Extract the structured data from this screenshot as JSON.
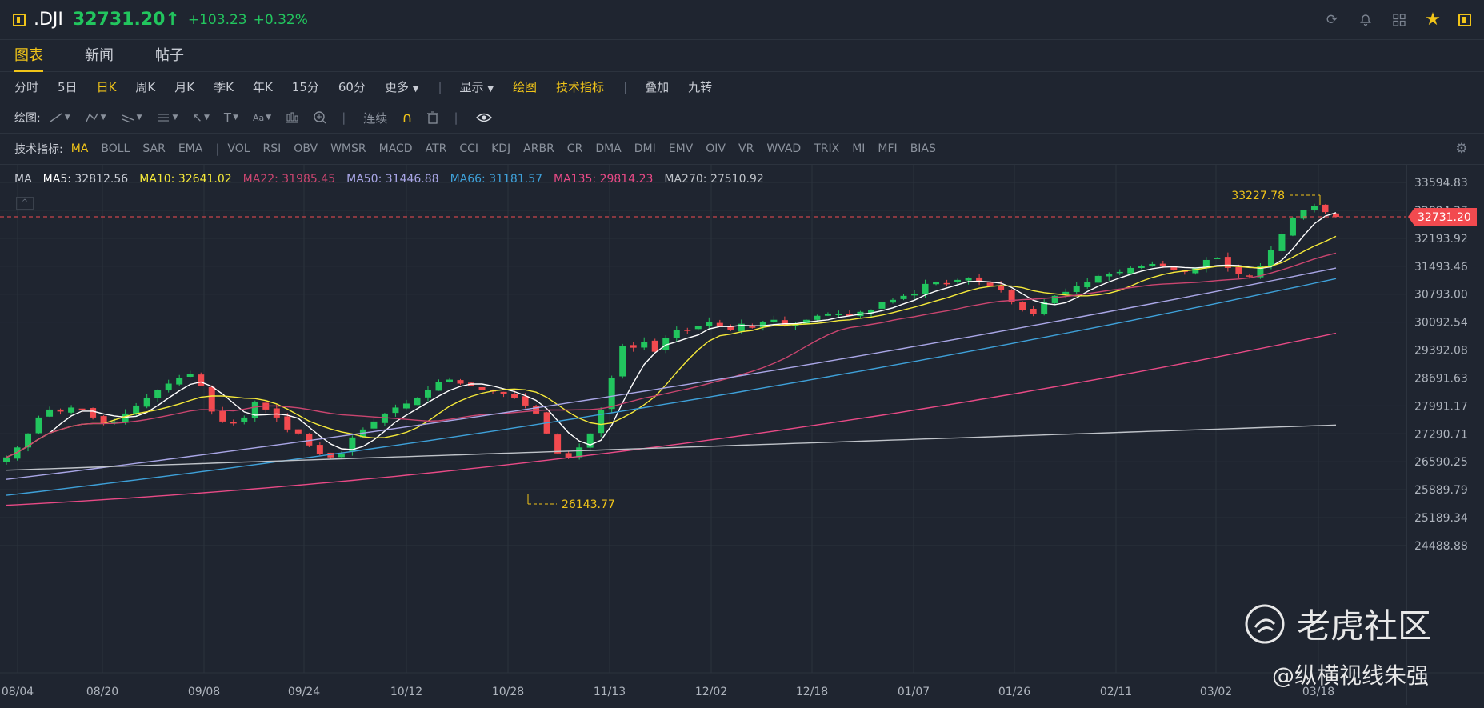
{
  "header": {
    "symbol": ".DJI",
    "price": "32731.20↑",
    "change": "+103.23",
    "change_pct": "+0.32%",
    "icons": [
      "refresh-icon",
      "bell-icon",
      "grid-icon",
      "star-icon",
      "sidebar-toggle-icon"
    ]
  },
  "tabs": [
    "图表",
    "新闻",
    "帖子"
  ],
  "periods": {
    "items": [
      "分时",
      "5日",
      "日K",
      "周K",
      "月K",
      "季K",
      "年K",
      "15分",
      "60分",
      "更多"
    ],
    "active": "日K",
    "display": "显示",
    "draw": "绘图",
    "indicators": "技术指标",
    "overlay": "叠加",
    "nine": "九转"
  },
  "drawbar": {
    "label": "绘图:",
    "continuous": "连续"
  },
  "indbar": {
    "label": "技术指标:",
    "items": [
      "MA",
      "BOLL",
      "SAR",
      "EMA",
      "VOL",
      "RSI",
      "OBV",
      "WMSR",
      "MACD",
      "ATR",
      "CCI",
      "KDJ",
      "ARBR",
      "CR",
      "DMA",
      "DMI",
      "EMV",
      "OIV",
      "VR",
      "WVAD",
      "TRIX",
      "MI",
      "MFI",
      "BIAS"
    ],
    "active": "MA"
  },
  "ma_legend": {
    "title": "MA",
    "items": [
      {
        "label": "MA5:",
        "value": "32812.56",
        "color": "#ffffff"
      },
      {
        "label": "MA10:",
        "value": "32641.02",
        "color": "#f5e93a"
      },
      {
        "label": "MA22:",
        "value": "31985.45",
        "color": "#c9456f"
      },
      {
        "label": "MA50:",
        "value": "31446.88",
        "color": "#a9a6e6"
      },
      {
        "label": "MA66:",
        "value": "31181.57",
        "color": "#3ea0d8"
      },
      {
        "label": "MA135:",
        "value": "29814.23",
        "color": "#e84a86"
      },
      {
        "label": "MA270:",
        "value": "27510.92",
        "color": "#bfc3c9"
      }
    ]
  },
  "chart_data": {
    "type": "candlestick",
    "y_ticks": [
      "33594.83",
      "32894.37",
      "32193.92",
      "31493.46",
      "30793.00",
      "30092.54",
      "29392.08",
      "28691.63",
      "27991.17",
      "27290.71",
      "26590.25",
      "25889.79",
      "25189.34",
      "24488.88"
    ],
    "x_ticks": [
      "08/04",
      "08/20",
      "09/08",
      "09/24",
      "10/12",
      "10/28",
      "11/13",
      "12/02",
      "12/18",
      "01/07",
      "01/26",
      "02/11",
      "03/02",
      "03/18"
    ],
    "current_price": "32731.20",
    "high_label": "33227.78",
    "low_label": "26143.77",
    "ylim": [
      24488.88,
      33594.83
    ],
    "closes": [
      26700,
      26950,
      27300,
      27700,
      27900,
      27850,
      27950,
      27900,
      27700,
      27550,
      27600,
      27800,
      28000,
      28200,
      28400,
      28550,
      28700,
      28800,
      28500,
      27850,
      27600,
      27550,
      27700,
      28100,
      27900,
      27700,
      27400,
      27300,
      27000,
      26780,
      26700,
      26800,
      27200,
      27400,
      27600,
      27800,
      27950,
      28050,
      28200,
      28400,
      28600,
      28650,
      28550,
      28500,
      28400,
      28350,
      28300,
      28200,
      28000,
      27800,
      27300,
      26800,
      26700,
      26950,
      27300,
      27900,
      28700,
      29500,
      29450,
      29600,
      29350,
      29700,
      29900,
      29900,
      30000,
      30100,
      30000,
      29900,
      30050,
      29950,
      30100,
      30150,
      30000,
      30050,
      30150,
      30250,
      30300,
      30300,
      30250,
      30350,
      30400,
      30600,
      30650,
      30750,
      30800,
      31050,
      31100,
      31050,
      31150,
      31200,
      31100,
      31000,
      30900,
      30600,
      30400,
      30300,
      30600,
      30750,
      30850,
      31000,
      31100,
      31250,
      31300,
      31350,
      31450,
      31500,
      31550,
      31500,
      31400,
      31350,
      31450,
      31650,
      31700,
      31450,
      31300,
      31250,
      31500,
      31900,
      32300,
      32700,
      32900,
      33000,
      32850,
      32731
    ]
  },
  "watermarks": {
    "community": "老虎社区",
    "author": "@纵横视线朱强"
  }
}
